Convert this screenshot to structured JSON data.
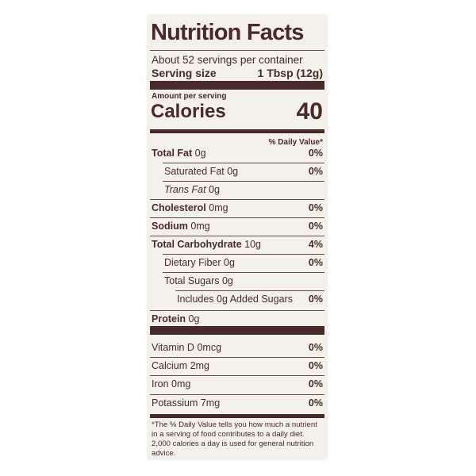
{
  "label": {
    "title": "Nutrition Facts",
    "servings": "About 52 servings per container",
    "serving_size_label": "Serving size",
    "serving_size_value": "1 Tbsp (12g)",
    "amount_per_serving": "Amount per serving",
    "calories_label": "Calories",
    "calories_value": "40",
    "daily_value_header": "% Daily Value*",
    "nutrients": [
      {
        "label": "Total Fat",
        "amount": "0g",
        "dv": "0%"
      },
      {
        "label": "Saturated Fat",
        "amount": "0g",
        "dv": "0%"
      },
      {
        "label": "Trans Fat",
        "amount": "0g",
        "dv": null
      },
      {
        "label": "Cholesterol",
        "amount": "0mg",
        "dv": "0%"
      },
      {
        "label": "Sodium",
        "amount": "0mg",
        "dv": "0%"
      },
      {
        "label": "Total Carbohydrate",
        "amount": "10g",
        "dv": "4%"
      },
      {
        "label": "Dietary Fiber",
        "amount": "0g",
        "dv": "0%"
      },
      {
        "label": "Total Sugars",
        "amount": "0g",
        "dv": null
      },
      {
        "label": "Includes 0g Added Sugars",
        "amount": null,
        "dv": "0%"
      },
      {
        "label": "Protein",
        "amount": "0g",
        "dv": null
      }
    ],
    "vitamins": [
      {
        "label": "Vitamin D",
        "amount": "0mcg",
        "dv": "0%"
      },
      {
        "label": "Calcium",
        "amount": "2mg",
        "dv": "0%"
      },
      {
        "label": "Iron",
        "amount": "0mg",
        "dv": "0%"
      },
      {
        "label": "Potassium",
        "amount": "7mg",
        "dv": "0%"
      }
    ],
    "footnote": "*The % Daily Value tells you how much a nutrient in a serving of food contributes to a daily diet. 2,000 calories a day is used for general nutrition advice."
  }
}
